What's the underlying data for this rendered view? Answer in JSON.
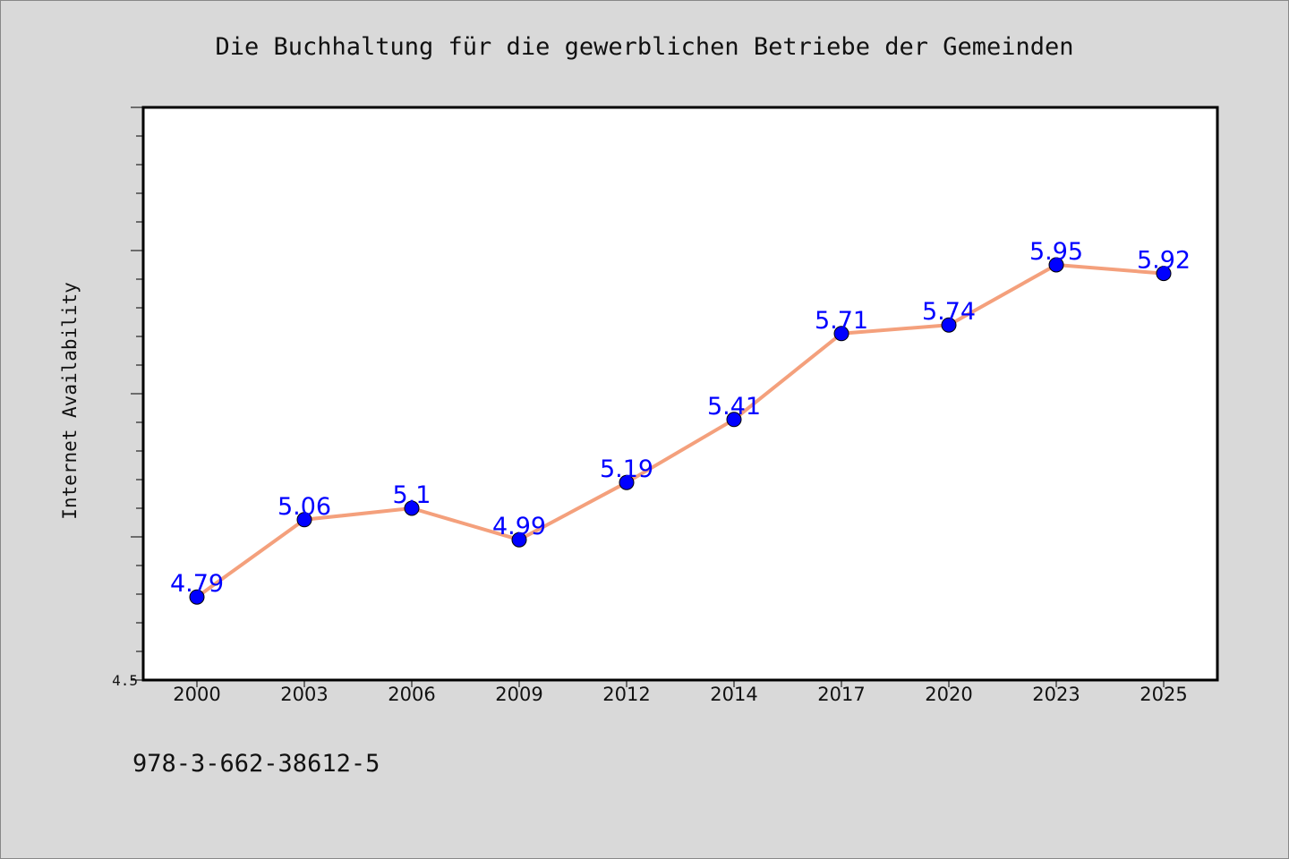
{
  "chart_data": {
    "type": "line",
    "title": "Die Buchhaltung für die gewerblichen Betriebe der Gemeinden",
    "xlabel": "",
    "ylabel": "Internet Availability",
    "ylim": [
      4.5,
      6.5
    ],
    "ytick_labels": [
      "4.5"
    ],
    "categories": [
      "2000",
      "2003",
      "2006",
      "2009",
      "2012",
      "2014",
      "2017",
      "2020",
      "2023",
      "2025"
    ],
    "series": [
      {
        "values": [
          4.79,
          5.06,
          5.1,
          4.99,
          5.19,
          5.41,
          5.71,
          5.74,
          5.95,
          5.92
        ],
        "labels": [
          "4.79",
          "5.06",
          "5.1",
          "4.99",
          "5.19",
          "5.41",
          "5.71",
          "5.74",
          "5.95",
          "5.92"
        ],
        "line_color": "#f4a07c",
        "marker_color": "#0000ff",
        "label_color": "#0000ff"
      }
    ],
    "grid": false,
    "legend": "none"
  },
  "footer_text": "978-3-662-38612-5",
  "colors": {
    "background": "#d9d9d9",
    "plot_background": "#ffffff",
    "axis": "#000000"
  }
}
